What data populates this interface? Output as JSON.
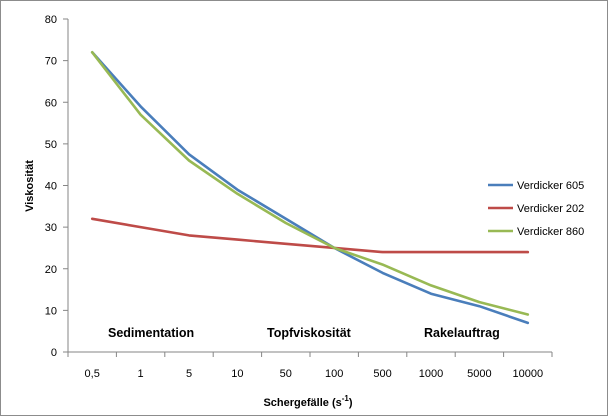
{
  "chart_data": {
    "type": "line",
    "categories": [
      "0,5",
      "1",
      "5",
      "10",
      "50",
      "100",
      "500",
      "1000",
      "5000",
      "10000"
    ],
    "xlabel_main": "Schergefälle (s",
    "xlabel_sup": "-1",
    "xlabel_close": ")",
    "ylabel": "Viskosität",
    "ylim": [
      0,
      80
    ],
    "yticks": [
      0,
      10,
      20,
      30,
      40,
      50,
      60,
      70,
      80
    ],
    "grid": false,
    "legend_position": "right",
    "series": [
      {
        "name": "Verdicker 605",
        "color": "#4a7ebb",
        "values": [
          72,
          59,
          47.5,
          39,
          32,
          25,
          19,
          14,
          11,
          7
        ]
      },
      {
        "name": "Verdicker 202",
        "color": "#be4b48",
        "values": [
          32,
          30,
          28,
          27,
          26,
          25,
          24,
          24,
          24,
          24
        ]
      },
      {
        "name": "Verdicker 860",
        "color": "#98b954",
        "values": [
          72,
          57,
          46,
          38,
          31,
          25,
          21,
          16,
          12,
          9
        ]
      }
    ],
    "annotations": [
      "Sedimentation",
      "Topfviskosität",
      "Rakelauftrag"
    ]
  }
}
